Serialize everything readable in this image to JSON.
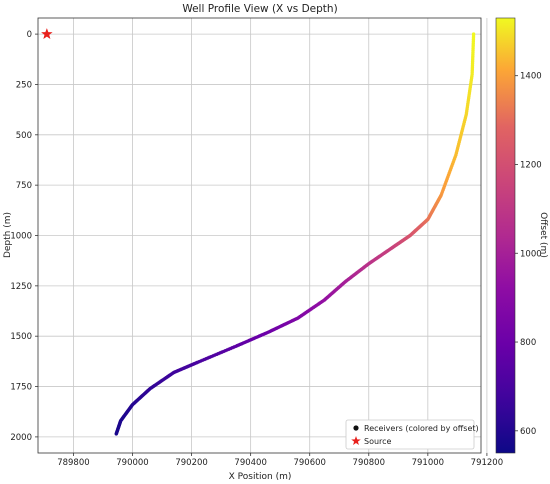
{
  "chart_data": {
    "type": "scatter",
    "title": "Well Profile View (X vs Depth)",
    "xlabel": "X Position (m)",
    "ylabel": "Depth (m)",
    "xlim": [
      789680,
      791180
    ],
    "ylim": [
      2080,
      -80
    ],
    "y_inverted": true,
    "grid": true,
    "x_ticks": [
      789800,
      790000,
      790200,
      790400,
      790600,
      790800,
      791000,
      791200
    ],
    "y_ticks": [
      0,
      250,
      500,
      750,
      1000,
      1250,
      1500,
      1750,
      2000
    ],
    "colorbar": {
      "label": "Offset (m)",
      "range": [
        550,
        1530
      ],
      "ticks": [
        600,
        800,
        1000,
        1200,
        1400
      ],
      "colormap": "plasma"
    },
    "series": [
      {
        "name": "Receivers (colored by offset)",
        "marker": "circle",
        "color_by": "offset",
        "points": [
          {
            "x": 791155,
            "y": 0,
            "offset": 1528
          },
          {
            "x": 791150,
            "y": 200,
            "offset": 1510
          },
          {
            "x": 791130,
            "y": 400,
            "offset": 1480
          },
          {
            "x": 791095,
            "y": 600,
            "offset": 1445
          },
          {
            "x": 791045,
            "y": 800,
            "offset": 1385
          },
          {
            "x": 791000,
            "y": 920,
            "offset": 1320
          },
          {
            "x": 790940,
            "y": 1000,
            "offset": 1230
          },
          {
            "x": 790880,
            "y": 1060,
            "offset": 1150
          },
          {
            "x": 790800,
            "y": 1140,
            "offset": 1080
          },
          {
            "x": 790720,
            "y": 1230,
            "offset": 1000
          },
          {
            "x": 790650,
            "y": 1320,
            "offset": 940
          },
          {
            "x": 790560,
            "y": 1410,
            "offset": 870
          },
          {
            "x": 790460,
            "y": 1480,
            "offset": 810
          },
          {
            "x": 790350,
            "y": 1550,
            "offset": 760
          },
          {
            "x": 790220,
            "y": 1630,
            "offset": 700
          },
          {
            "x": 790140,
            "y": 1680,
            "offset": 675
          },
          {
            "x": 790060,
            "y": 1760,
            "offset": 640
          },
          {
            "x": 790000,
            "y": 1840,
            "offset": 610
          },
          {
            "x": 789960,
            "y": 1920,
            "offset": 590
          },
          {
            "x": 789945,
            "y": 1985,
            "offset": 580
          }
        ]
      },
      {
        "name": "Source",
        "marker": "star",
        "color": "#e8201c",
        "points": [
          {
            "x": 789710,
            "y": 0
          }
        ]
      }
    ],
    "legend_position": "lower-right"
  }
}
